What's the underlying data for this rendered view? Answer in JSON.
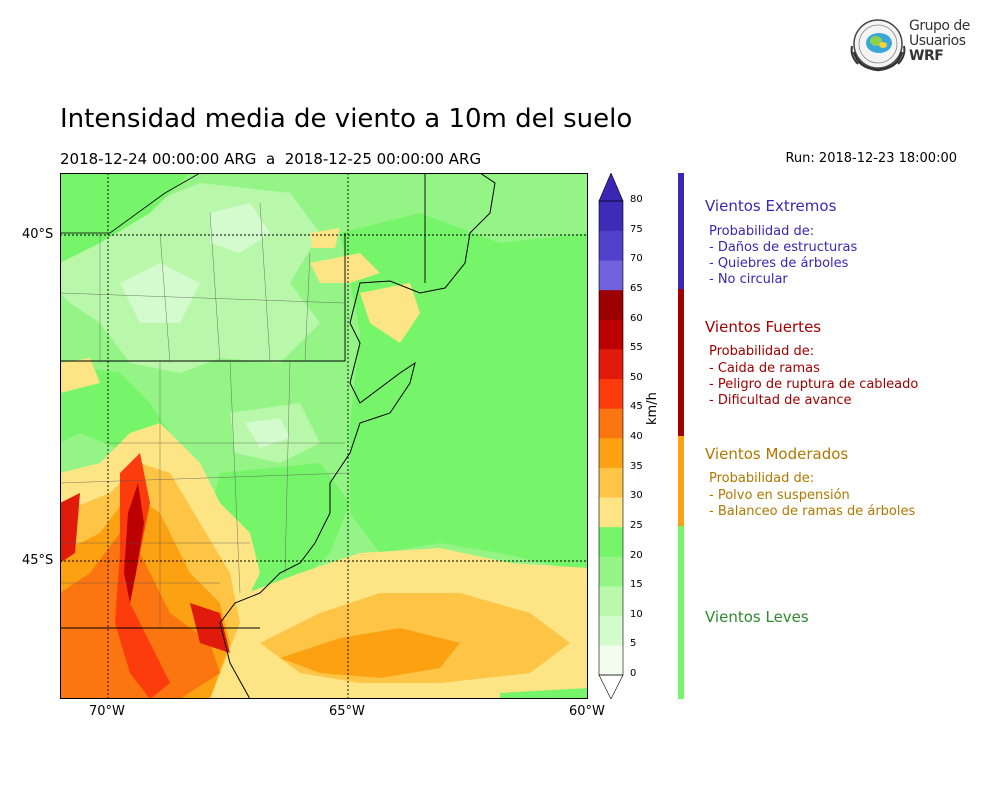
{
  "header": {
    "title": "Intensidad media de viento a 10m del suelo",
    "period_start": "2018-12-24 00:00:00 ARG",
    "period_sep": "a",
    "period_end": "2018-12-25 00:00:00 ARG",
    "run": "Run: 2018-12-23 18:00:00"
  },
  "logo": {
    "line1": "Grupo de",
    "line2": "Usuarios",
    "line3": "WRF"
  },
  "map": {
    "lat_labels": [
      "40°S",
      "45°S"
    ],
    "lon_labels": [
      "70°W",
      "65°W",
      "60°W"
    ],
    "lat_values": [
      -40,
      -45
    ],
    "lon_values": [
      -70,
      -65,
      -60
    ],
    "lat_range": [
      -49.1,
      -41.1
    ],
    "lon_range": [
      -71.0,
      -60.0
    ]
  },
  "colorbar": {
    "unit": "km/h",
    "ticks": [
      "0",
      "5",
      "10",
      "15",
      "20",
      "25",
      "30",
      "35",
      "40",
      "45",
      "50",
      "55",
      "60",
      "65",
      "70",
      "75",
      "80"
    ],
    "colors": [
      "#f2fdf0",
      "#d4fbce",
      "#b9f8ab",
      "#95f486",
      "#76f56a",
      "#fde585",
      "#fdc446",
      "#fca212",
      "#fb7511",
      "#fc3c0d",
      "#e01b0c",
      "#bb0000",
      "#9c0000",
      "#7161dd",
      "#5141ca",
      "#3f2bb7"
    ],
    "max_color": "#3b27b3",
    "min_color": "#ffffff"
  },
  "legend": {
    "extremos": {
      "title": "Vientos Extremos",
      "sub": "Probabilidad de:",
      "items": [
        "- Daños de estructuras",
        "- Quiebres de árboles",
        "- No circular"
      ],
      "color": "#3b27b3"
    },
    "fuertes": {
      "title": "Vientos Fuertes",
      "sub": "Probabilidad de:",
      "items": [
        "- Caida de ramas",
        "- Peligro de ruptura de cableado",
        "- Dificultad de avance"
      ],
      "color": "#a00000"
    },
    "moderados": {
      "title": "Vientos Moderados",
      "sub": "Probabilidad de:",
      "items": [
        "- Polvo en suspensión",
        "- Balanceo de ramas de árboles"
      ],
      "color": "#b07800",
      "bar_color": "#fca212"
    },
    "leves": {
      "title": "Vientos Leves",
      "color": "#2e8b2e",
      "bar_color": "#76f56a"
    }
  }
}
